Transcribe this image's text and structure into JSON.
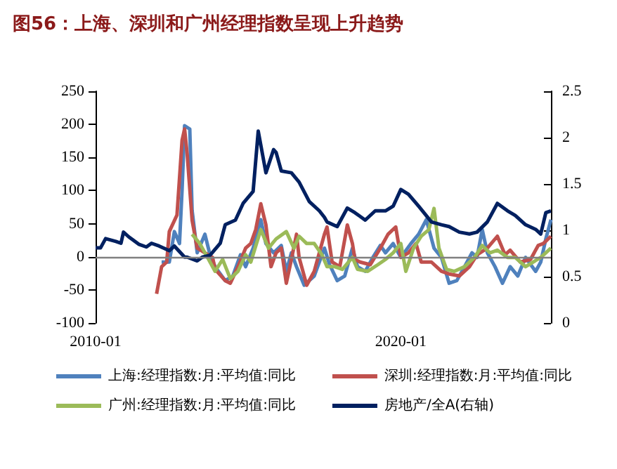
{
  "chart_data": {
    "type": "line",
    "title": "图56：上海、深圳和广州经理指数呈现上升趋势",
    "xlim": [
      "2010-01",
      "2024-12"
    ],
    "xticks": [
      {
        "value": "2010-01",
        "label": "2010-01"
      },
      {
        "value": "2020-01",
        "label": "2020-01"
      }
    ],
    "ylim": [
      -100,
      250
    ],
    "yticks": [
      -100,
      -50,
      0,
      50,
      100,
      150,
      200,
      250
    ],
    "y2lim": [
      0,
      2.5
    ],
    "y2ticks": [
      0,
      0.5,
      1,
      1.5,
      2,
      2.5
    ],
    "legend": "bottom",
    "ref_lines": [
      {
        "axis": "y",
        "value": 0,
        "color": "#808080"
      }
    ],
    "series": [
      {
        "name": "上海:经理指数:月:平均值:同比",
        "color": "#4f81bd",
        "x": [
          "2012-03",
          "2012-06",
          "2012-08",
          "2012-10",
          "2012-11",
          "2012-12",
          "2013-02",
          "2013-03",
          "2013-05",
          "2013-08",
          "2013-10",
          "2013-12",
          "2014-04",
          "2014-07",
          "2014-10",
          "2014-12",
          "2015-03",
          "2015-06",
          "2015-08",
          "2015-11",
          "2016-02",
          "2016-04",
          "2016-06",
          "2016-08",
          "2016-11",
          "2017-03",
          "2017-07",
          "2017-09",
          "2017-12",
          "2018-03",
          "2018-06",
          "2018-08",
          "2018-11",
          "2019-02",
          "2019-05",
          "2019-07",
          "2019-10",
          "2020-01",
          "2020-05",
          "2020-08",
          "2020-11",
          "2021-02",
          "2021-05",
          "2021-08",
          "2021-11",
          "2022-02",
          "2022-05",
          "2022-07",
          "2022-09",
          "2022-11",
          "2023-02",
          "2023-05",
          "2023-08",
          "2023-11",
          "2024-02",
          "2024-06",
          "2024-08",
          "2024-10",
          "2024-12"
        ],
        "values": [
          -8,
          -8,
          38,
          20,
          101,
          198,
          193,
          70,
          6,
          34,
          3,
          -15,
          -36,
          -29,
          3,
          -15,
          13,
          56,
          20,
          6,
          17,
          -22,
          6,
          -15,
          -43,
          -29,
          13,
          -12,
          -36,
          -29,
          13,
          -15,
          -22,
          -1,
          17,
          6,
          20,
          -1,
          20,
          34,
          56,
          13,
          -1,
          -40,
          -36,
          -15,
          6,
          -1,
          41,
          6,
          -15,
          -40,
          -15,
          -29,
          -1,
          -22,
          -8,
          27,
          56
        ]
      },
      {
        "name": "深圳:经理指数:月:平均值:同比",
        "color": "#c0504d",
        "x": [
          "2012-01",
          "2012-03",
          "2012-05",
          "2012-06",
          "2012-09",
          "2012-11",
          "2012-12",
          "2013-01",
          "2013-03",
          "2013-05",
          "2013-08",
          "2013-11",
          "2013-12",
          "2014-04",
          "2014-06",
          "2014-09",
          "2014-12",
          "2015-02",
          "2015-04",
          "2015-06",
          "2015-08",
          "2015-10",
          "2015-12",
          "2016-02",
          "2016-04",
          "2016-06",
          "2016-08",
          "2016-09",
          "2016-12",
          "2017-03",
          "2017-07",
          "2017-08",
          "2017-10",
          "2018-01",
          "2018-04",
          "2018-06",
          "2018-07",
          "2018-09",
          "2019-01",
          "2019-05",
          "2019-08",
          "2019-11",
          "2020-01",
          "2020-04",
          "2020-07",
          "2020-09",
          "2021-01",
          "2021-05",
          "2021-08",
          "2021-12",
          "2022-04",
          "2022-07",
          "2022-11",
          "2023-03",
          "2023-06",
          "2023-08",
          "2023-12",
          "2024-04",
          "2024-07",
          "2024-09",
          "2024-12"
        ],
        "values": [
          -56,
          -15,
          -8,
          38,
          63,
          176,
          193,
          155,
          55,
          13,
          6,
          -1,
          -19,
          -36,
          -40,
          -15,
          13,
          20,
          41,
          80,
          48,
          -15,
          6,
          13,
          -40,
          -4,
          34,
          -1,
          -43,
          -22,
          34,
          45,
          -8,
          -15,
          48,
          20,
          -4,
          -8,
          -12,
          13,
          34,
          45,
          -1,
          6,
          20,
          -8,
          -8,
          -22,
          -26,
          -29,
          -15,
          3,
          13,
          31,
          3,
          10,
          -8,
          -4,
          17,
          20,
          31
        ]
      },
      {
        "name": "广州:经理指数:月:平均值:同比",
        "color": "#9bbb59",
        "x": [
          "2013-03",
          "2013-06",
          "2013-09",
          "2013-12",
          "2014-03",
          "2014-06",
          "2014-09",
          "2014-12",
          "2015-02",
          "2015-06",
          "2015-09",
          "2015-12",
          "2016-04",
          "2016-07",
          "2016-09",
          "2016-12",
          "2017-03",
          "2017-06",
          "2017-08",
          "2017-11",
          "2018-02",
          "2018-06",
          "2018-08",
          "2018-12",
          "2019-04",
          "2019-07",
          "2019-10",
          "2020-01",
          "2020-03",
          "2020-06",
          "2020-09",
          "2020-12",
          "2021-02",
          "2021-04",
          "2021-07",
          "2021-10",
          "2022-02",
          "2022-06",
          "2022-09",
          "2022-12",
          "2023-03",
          "2023-07",
          "2023-10",
          "2024-02",
          "2024-05",
          "2024-08",
          "2024-12"
        ],
        "values": [
          34,
          20,
          -1,
          -22,
          -4,
          -33,
          -22,
          3,
          -8,
          41,
          13,
          27,
          38,
          13,
          31,
          20,
          20,
          3,
          -15,
          -15,
          -19,
          -1,
          -19,
          -22,
          -12,
          -4,
          6,
          20,
          -22,
          13,
          31,
          41,
          73,
          13,
          -19,
          -22,
          -15,
          -1,
          17,
          6,
          10,
          -1,
          -1,
          -15,
          -8,
          -1,
          13
        ]
      },
      {
        "name": "房地产/全A(右轴)",
        "color": "#002060",
        "axis": "y2",
        "x": [
          "2010-01",
          "2010-03",
          "2010-05",
          "2010-09",
          "2010-11",
          "2010-12",
          "2011-02",
          "2011-06",
          "2011-09",
          "2011-11",
          "2012-02",
          "2012-06",
          "2012-08",
          "2012-12",
          "2013-01",
          "2013-05",
          "2013-07",
          "2013-10",
          "2014-02",
          "2014-04",
          "2014-08",
          "2014-11",
          "2015-03",
          "2015-05",
          "2015-08",
          "2015-11",
          "2015-12",
          "2016-02",
          "2016-06",
          "2016-09",
          "2017-01",
          "2017-05",
          "2017-07",
          "2017-08",
          "2017-12",
          "2018-04",
          "2018-07",
          "2018-11",
          "2019-03",
          "2019-07",
          "2019-10",
          "2020-01",
          "2020-04",
          "2020-08",
          "2021-01",
          "2021-05",
          "2021-08",
          "2021-12",
          "2022-04",
          "2022-07",
          "2022-11",
          "2023-03",
          "2023-07",
          "2023-10",
          "2024-02",
          "2024-06",
          "2024-08",
          "2024-10",
          "2024-12"
        ],
        "values": [
          0.81,
          0.81,
          0.91,
          0.88,
          0.86,
          0.98,
          0.93,
          0.85,
          0.82,
          0.86,
          0.83,
          0.78,
          0.83,
          0.71,
          0.71,
          0.67,
          0.71,
          0.73,
          0.86,
          1.06,
          1.11,
          1.29,
          1.42,
          2.07,
          1.62,
          1.87,
          1.84,
          1.64,
          1.62,
          1.52,
          1.31,
          1.21,
          1.14,
          1.09,
          1.04,
          1.24,
          1.19,
          1.11,
          1.21,
          1.21,
          1.26,
          1.44,
          1.39,
          1.26,
          1.09,
          1.06,
          1.04,
          0.98,
          0.96,
          0.98,
          1.09,
          1.29,
          1.21,
          1.16,
          1.06,
          1.01,
          0.96,
          1.19,
          1.21
        ]
      }
    ]
  }
}
